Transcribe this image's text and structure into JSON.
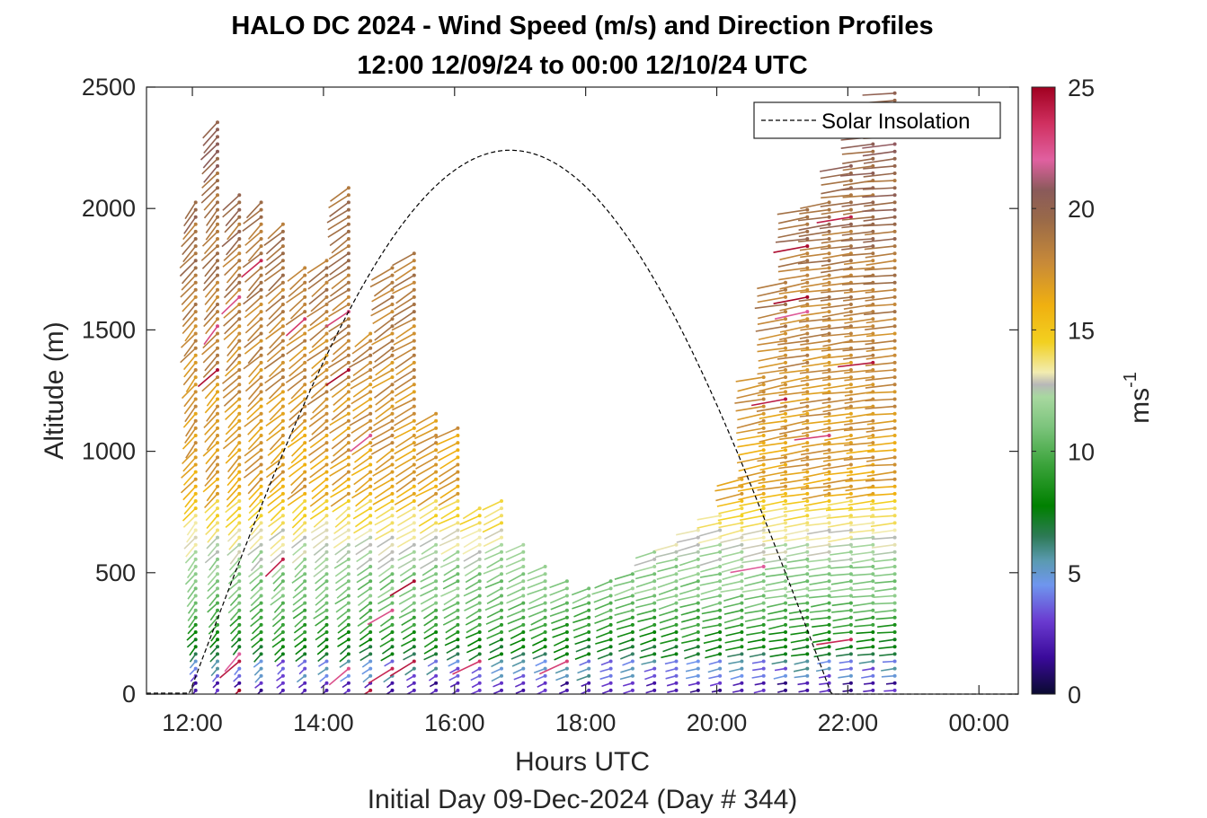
{
  "chart_data": {
    "type": "barb-profile",
    "title": "HALO DC 2024 - Wind Speed (m/s) and Direction Profiles",
    "subtitle": "12:00 12/09/24 to 00:00 12/10/24  UTC",
    "xlabel": "Hours UTC",
    "ylabel": "Altitude (m)",
    "footer": "Initial Day 09-Dec-2024 (Day # 344)",
    "x_ticks": [
      "12:00",
      "14:00",
      "16:00",
      "18:00",
      "20:00",
      "22:00",
      "00:00"
    ],
    "x_tick_hours": [
      12,
      14,
      16,
      18,
      20,
      22,
      24
    ],
    "xlim_hours": [
      11.3,
      24.6
    ],
    "y_ticks": [
      "0",
      "500",
      "1000",
      "1500",
      "2000",
      "2500"
    ],
    "y_tick_values": [
      0,
      500,
      1000,
      1500,
      2000,
      2500
    ],
    "ylim": [
      0,
      2500
    ],
    "legend": {
      "entries": [
        "Solar Insolation"
      ],
      "placement": "top-right"
    },
    "colorbar": {
      "label": "ms",
      "label_exponent": "-1",
      "range": [
        0,
        25
      ],
      "ticks": [
        "0",
        "5",
        "10",
        "15",
        "20",
        "25"
      ],
      "tick_values": [
        0,
        5,
        10,
        15,
        20,
        25
      ]
    },
    "solar_insolation": {
      "rise_hour": 11.95,
      "set_hour": 21.75,
      "peak_hour": 16.85,
      "peak_altitude_equiv": 2240
    },
    "profiles": {
      "start_hour": 12.05,
      "step_hour": 0.3333,
      "count": 33,
      "max_altitude": [
        2040,
        2370,
        2080,
        2040,
        1960,
        1780,
        1800,
        2090,
        1500,
        1780,
        1820,
        1170,
        1100,
        780,
        820,
        620,
        530,
        470,
        440,
        480,
        520,
        590,
        640,
        690,
        760,
        900,
        1310,
        1700,
        2000,
        2050,
        2200,
        2380,
        2500
      ],
      "level_spacing_m": 30
    }
  }
}
